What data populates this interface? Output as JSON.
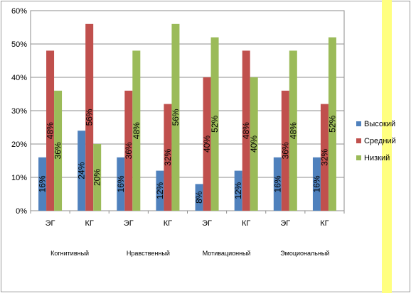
{
  "chart_data": {
    "type": "bar",
    "groups": [
      "Когнитивный",
      "Нравственный",
      "Мотивационный",
      "Эмоциональный"
    ],
    "categories": [
      "ЭГ",
      "КГ",
      "ЭГ",
      "КГ",
      "ЭГ",
      "КГ",
      "ЭГ",
      "КГ"
    ],
    "series": [
      {
        "name": "Высокий",
        "color": "#4f81bd",
        "values": [
          16,
          24,
          16,
          12,
          8,
          12,
          16,
          16
        ]
      },
      {
        "name": "Средний",
        "color": "#c0504d",
        "values": [
          48,
          56,
          36,
          32,
          40,
          48,
          36,
          32
        ]
      },
      {
        "name": "Низкий",
        "color": "#9bbb59",
        "values": [
          36,
          20,
          48,
          56,
          52,
          40,
          48,
          52
        ]
      }
    ],
    "value_suffix": "%",
    "ylim": [
      0,
      60
    ],
    "yticks": [
      "0%",
      "10%",
      "20%",
      "30%",
      "40%",
      "50%",
      "60%"
    ],
    "grid": true,
    "legend_position": "right",
    "data_labels": true
  }
}
